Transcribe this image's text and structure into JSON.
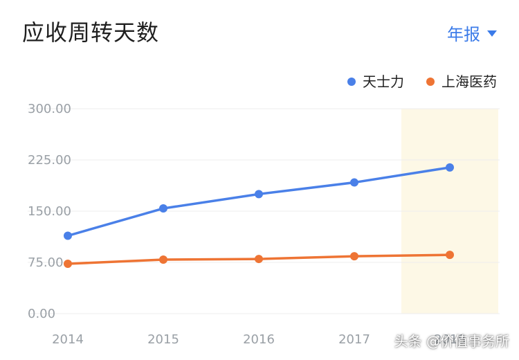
{
  "header": {
    "title": "应收周转天数",
    "period_label": "年报"
  },
  "colors": {
    "series_1": "#4a80e8",
    "series_2": "#ee7434",
    "highlight_band": "#fdf8e6",
    "grid": "#ededed",
    "tick_text": "#9aa0a6",
    "accent": "#3b7be9"
  },
  "chart_data": {
    "type": "line",
    "title": "",
    "xlabel": "",
    "ylabel": "",
    "categories": [
      "2014",
      "2015",
      "2016",
      "2017",
      "2018"
    ],
    "ylim": [
      0,
      300
    ],
    "y_ticks": [
      "0.00",
      "75.00",
      "150.00",
      "225.00",
      "300.00"
    ],
    "grid": true,
    "legend_position": "top-right",
    "highlight_category": "2018",
    "series": [
      {
        "name": "天士力",
        "color": "#4a80e8",
        "values": [
          114,
          154,
          175,
          192,
          214
        ]
      },
      {
        "name": "上海医药",
        "color": "#ee7434",
        "values": [
          73,
          79,
          80,
          84,
          86
        ]
      }
    ]
  },
  "watermark": "头条 @价值事务所"
}
